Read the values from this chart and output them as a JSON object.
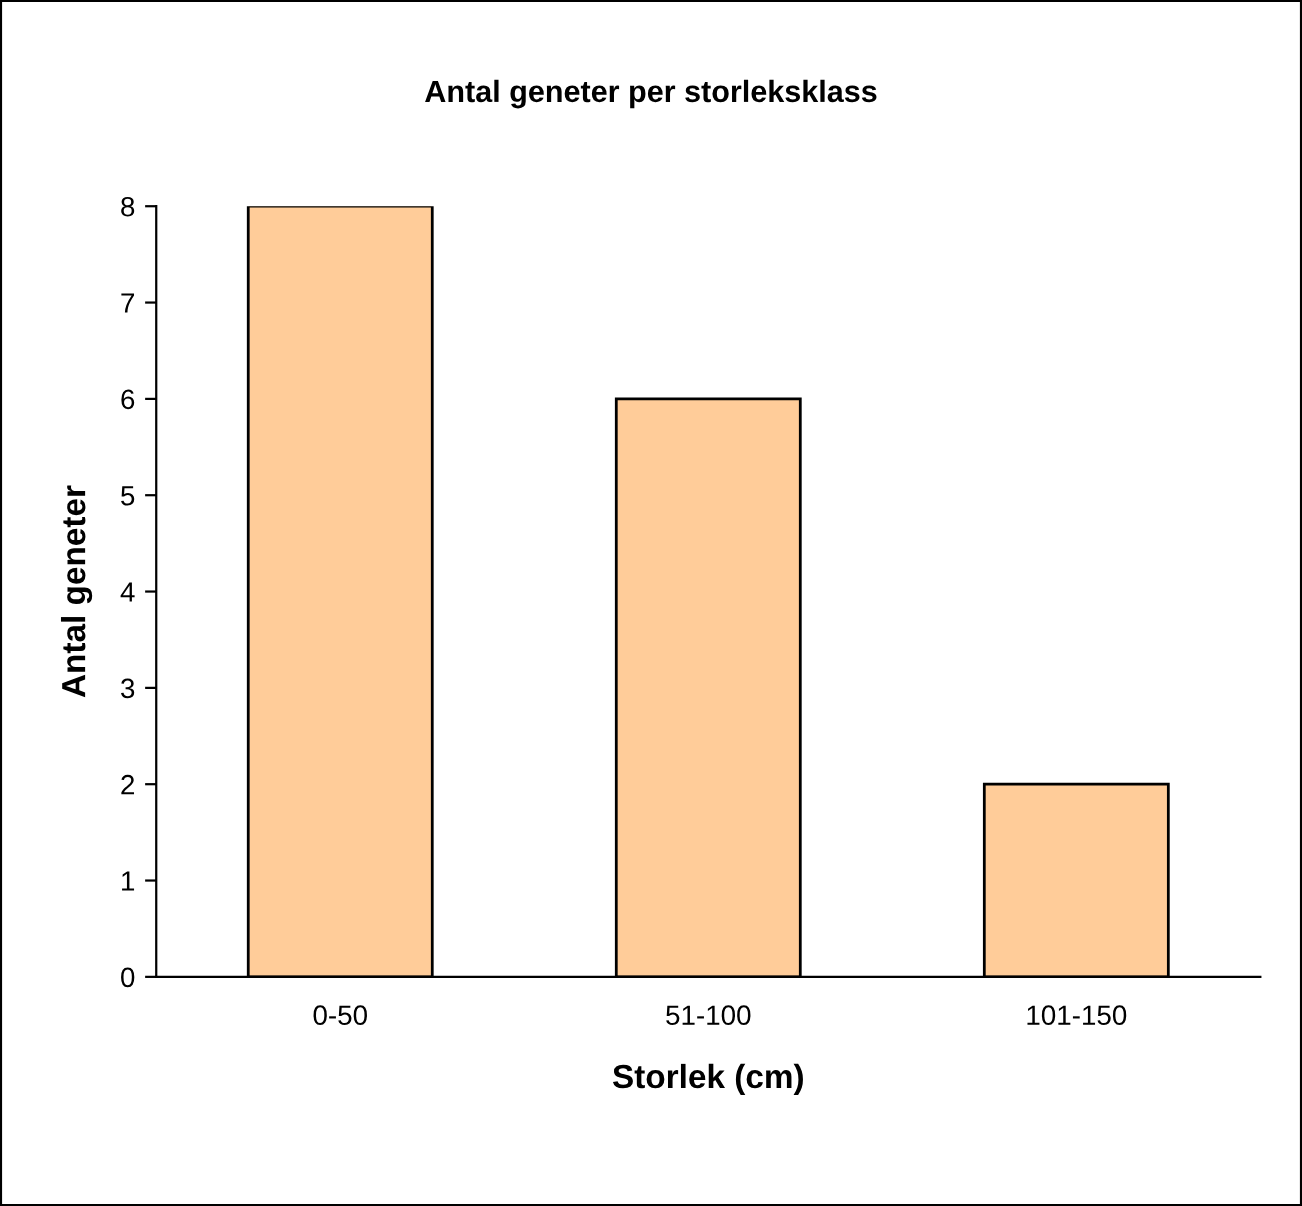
{
  "chart_data": {
    "type": "bar",
    "title": "Antal geneter per storleksklass",
    "xlabel": "Storlek (cm)",
    "ylabel": "Antal geneter",
    "categories": [
      "0-50",
      "51-100",
      "101-150"
    ],
    "values": [
      8,
      6,
      2
    ],
    "color": "#ffcc99",
    "ylim": [
      0,
      8
    ],
    "yticks": [
      0,
      1,
      2,
      3,
      4,
      5,
      6,
      7,
      8
    ],
    "grid": false,
    "legend": false
  }
}
